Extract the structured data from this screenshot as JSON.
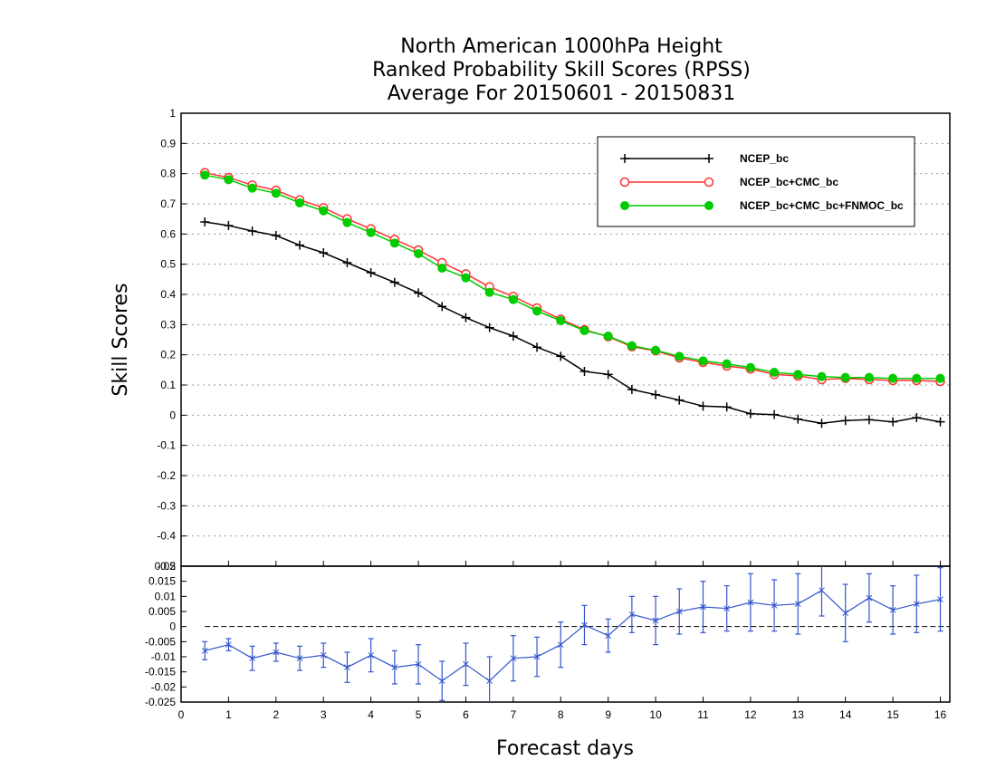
{
  "chart_data": {
    "type": "line",
    "title": [
      "North American 1000hPa Height",
      "Ranked Probability Skill Scores (RPSS)",
      "Average For 20150601 - 20150831"
    ],
    "xlabel": "Forecast days",
    "ylabel": "Skill Scores",
    "xlim": [
      0,
      16.2
    ],
    "xticks": [
      "0",
      "1",
      "2",
      "3",
      "4",
      "5",
      "6",
      "7",
      "8",
      "9",
      "10",
      "11",
      "12",
      "13",
      "14",
      "15",
      "16"
    ],
    "top_panel": {
      "ylim": [
        -0.5,
        1
      ],
      "yticks": [
        "-0.5",
        "-0.4",
        "-0.3",
        "-0.2",
        "-0.1",
        "0",
        "0.1",
        "0.2",
        "0.3",
        "0.4",
        "0.5",
        "0.6",
        "0.7",
        "0.8",
        "0.9",
        "1"
      ],
      "grid": true,
      "legend_position": "top-right",
      "x": [
        0.5,
        1,
        1.5,
        2,
        2.5,
        3,
        3.5,
        4,
        4.5,
        5,
        5.5,
        6,
        6.5,
        7,
        7.5,
        8,
        8.5,
        9,
        9.5,
        10,
        10.5,
        11,
        11.5,
        12,
        12.5,
        13,
        13.5,
        14,
        14.5,
        15,
        15.5,
        16
      ],
      "series": [
        {
          "name": "NCEP_bc",
          "color": "#000000",
          "marker": "plus",
          "values": [
            0.64,
            0.628,
            0.61,
            0.595,
            0.563,
            0.538,
            0.505,
            0.472,
            0.44,
            0.405,
            0.36,
            0.323,
            0.29,
            0.262,
            0.225,
            0.195,
            0.145,
            0.135,
            0.085,
            0.068,
            0.05,
            0.03,
            0.027,
            0.005,
            0.002,
            -0.013,
            -0.027,
            -0.018,
            -0.015,
            -0.022,
            -0.008,
            -0.022
          ]
        },
        {
          "name": "NCEP_bc+CMC_bc",
          "color": "#ff3030",
          "marker": "open-circle",
          "values": [
            0.803,
            0.787,
            0.762,
            0.745,
            0.713,
            0.687,
            0.65,
            0.617,
            0.582,
            0.547,
            0.505,
            0.468,
            0.425,
            0.393,
            0.355,
            0.318,
            0.283,
            0.26,
            0.227,
            0.213,
            0.19,
            0.175,
            0.163,
            0.153,
            0.135,
            0.13,
            0.118,
            0.122,
            0.118,
            0.115,
            0.115,
            0.112
          ]
        },
        {
          "name": "NCEP_bc+CMC_bc+FNMOC_bc",
          "color": "#00cc00",
          "marker": "filled-circle",
          "values": [
            0.795,
            0.78,
            0.752,
            0.735,
            0.703,
            0.677,
            0.638,
            0.605,
            0.57,
            0.535,
            0.487,
            0.455,
            0.407,
            0.383,
            0.345,
            0.313,
            0.28,
            0.262,
            0.23,
            0.215,
            0.195,
            0.18,
            0.17,
            0.158,
            0.142,
            0.135,
            0.128,
            0.125,
            0.125,
            0.122,
            0.122,
            0.122
          ]
        }
      ]
    },
    "bottom_panel": {
      "ylim": [
        -0.025,
        0.02
      ],
      "yticks": [
        "-0.025",
        "-0.02",
        "-0.015",
        "-0.01",
        "-0.005",
        "0",
        "0.005",
        "0.01",
        "0.015",
        "0.02"
      ],
      "color": "#3355cc",
      "x": [
        0.5,
        1,
        1.5,
        2,
        2.5,
        3,
        3.5,
        4,
        4.5,
        5,
        5.5,
        6,
        6.5,
        7,
        7.5,
        8,
        8.5,
        9,
        9.5,
        10,
        10.5,
        11,
        11.5,
        12,
        12.5,
        13,
        13.5,
        14,
        14.5,
        15,
        15.5,
        16
      ],
      "values": [
        -0.008,
        -0.006,
        -0.0105,
        -0.0085,
        -0.0105,
        -0.0095,
        -0.0135,
        -0.0095,
        -0.0135,
        -0.0125,
        -0.018,
        -0.0125,
        -0.018,
        -0.0105,
        -0.01,
        -0.006,
        0.0005,
        -0.003,
        0.004,
        0.002,
        0.005,
        0.0065,
        0.006,
        0.008,
        0.007,
        0.0075,
        0.012,
        0.0045,
        0.0095,
        0.0055,
        0.0075,
        0.009
      ],
      "errors": [
        0.003,
        0.002,
        0.004,
        0.003,
        0.004,
        0.004,
        0.005,
        0.0055,
        0.0055,
        0.0065,
        0.0065,
        0.007,
        0.008,
        0.0075,
        0.0065,
        0.0075,
        0.0065,
        0.0055,
        0.006,
        0.008,
        0.0075,
        0.0085,
        0.0075,
        0.0095,
        0.0085,
        0.01,
        0.0085,
        0.0095,
        0.008,
        0.008,
        0.0095,
        0.0105
      ]
    }
  }
}
